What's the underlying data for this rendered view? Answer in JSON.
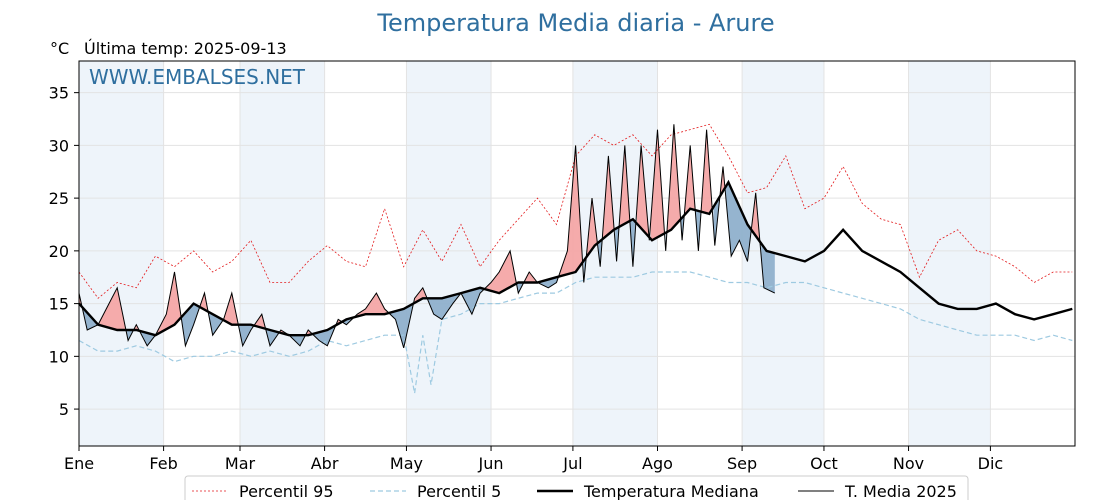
{
  "chart_data": {
    "type": "line",
    "title": "Temperatura Media diaria - Arure",
    "unit_label": "°C",
    "last_update": "Última temp: 2025-09-13",
    "watermark": "WWW.EMBALSES.NET",
    "ylim": [
      1.5,
      38
    ],
    "yticks": [
      5,
      10,
      15,
      20,
      25,
      30,
      35
    ],
    "month_labels": [
      "Ene",
      "Feb",
      "Mar",
      "Abr",
      "May",
      "Jun",
      "Jul",
      "Ago",
      "Sep",
      "Oct",
      "Nov",
      "Dic"
    ],
    "month_start_days": [
      1,
      32,
      60,
      91,
      121,
      152,
      182,
      213,
      244,
      274,
      305,
      335
    ],
    "grid": true,
    "legend_position": "bottom-center",
    "colors": {
      "p95": "#e31a1c",
      "p5": "#9ecae1",
      "median": "#000000",
      "current": "#000000",
      "above": "#f4a6a6",
      "below": "#8fb0cc",
      "band": "#eef4fa"
    },
    "series": [
      {
        "name": "Percentil 95",
        "key": "p95",
        "x": [
          1,
          8,
          15,
          22,
          29,
          36,
          43,
          50,
          57,
          64,
          71,
          78,
          85,
          92,
          99,
          106,
          113,
          120,
          127,
          134,
          141,
          148,
          155,
          162,
          169,
          176,
          183,
          190,
          197,
          204,
          211,
          218,
          225,
          232,
          239,
          246,
          253,
          260,
          267,
          274,
          281,
          288,
          295,
          302,
          309,
          316,
          323,
          330,
          337,
          344,
          351,
          358,
          365
        ],
        "values": [
          18,
          15.5,
          17,
          16.5,
          19.5,
          18.5,
          20,
          18,
          19,
          21,
          17,
          17,
          19,
          20.5,
          19,
          18.5,
          24,
          18.5,
          22,
          19,
          22.5,
          18.5,
          21,
          23,
          25,
          22.5,
          29,
          31,
          30,
          31,
          29,
          31,
          31.5,
          32,
          29,
          25.5,
          26,
          29,
          24,
          25,
          28,
          24.5,
          23,
          22.5,
          17.5,
          21,
          22,
          20,
          19.5,
          18.5,
          17,
          18,
          18
        ]
      },
      {
        "name": "Percentil 5",
        "key": "p5",
        "x": [
          1,
          8,
          15,
          22,
          29,
          36,
          43,
          50,
          57,
          64,
          71,
          78,
          85,
          92,
          99,
          106,
          113,
          120,
          124,
          127,
          130,
          134,
          141,
          148,
          155,
          162,
          169,
          176,
          183,
          190,
          197,
          204,
          211,
          218,
          225,
          232,
          239,
          246,
          253,
          260,
          267,
          274,
          281,
          288,
          295,
          302,
          309,
          316,
          323,
          330,
          337,
          344,
          351,
          358,
          365
        ],
        "values": [
          11.5,
          10.5,
          10.5,
          11,
          10.5,
          9.5,
          10,
          10,
          10.5,
          10,
          10.5,
          10,
          10.5,
          11.5,
          11,
          11.5,
          12,
          12,
          6.5,
          12,
          7.3,
          13.5,
          14,
          15,
          15,
          15.5,
          16,
          16,
          17,
          17.5,
          17.5,
          17.5,
          18,
          18,
          18,
          17.5,
          17,
          17,
          16.5,
          17,
          17,
          16.5,
          16,
          15.5,
          15,
          14.5,
          13.5,
          13,
          12.5,
          12,
          12,
          12,
          11.5,
          12,
          11.5
        ]
      },
      {
        "name": "Temperatura Mediana",
        "key": "median",
        "x": [
          1,
          8,
          15,
          22,
          29,
          36,
          43,
          50,
          57,
          64,
          71,
          78,
          85,
          92,
          99,
          106,
          113,
          120,
          127,
          134,
          141,
          148,
          155,
          162,
          169,
          176,
          183,
          190,
          197,
          204,
          211,
          218,
          225,
          232,
          239,
          246,
          253,
          260,
          267,
          274,
          281,
          288,
          295,
          302,
          309,
          316,
          323,
          330,
          337,
          344,
          351,
          358,
          365
        ],
        "values": [
          15,
          13,
          12.5,
          12.5,
          12,
          13,
          15,
          14,
          13,
          13,
          12.5,
          12,
          12,
          12.5,
          13.5,
          14,
          14,
          14.5,
          15.5,
          15.5,
          16,
          16.5,
          16,
          17,
          17,
          17.5,
          18,
          20.5,
          22,
          23,
          21,
          22,
          24,
          23.5,
          26.5,
          22.5,
          20,
          19.5,
          19,
          20,
          22,
          20,
          19,
          18,
          16.5,
          15,
          14.5,
          14.5,
          15,
          14,
          13.5,
          14,
          14.5
        ]
      },
      {
        "name": "T. Media 2025",
        "key": "current",
        "x": [
          1,
          4,
          8,
          12,
          15,
          19,
          22,
          26,
          29,
          33,
          36,
          40,
          43,
          47,
          50,
          54,
          57,
          61,
          64,
          68,
          71,
          75,
          78,
          82,
          85,
          89,
          92,
          96,
          99,
          103,
          106,
          110,
          113,
          117,
          120,
          124,
          127,
          131,
          134,
          138,
          141,
          145,
          148,
          152,
          155,
          159,
          162,
          166,
          169,
          173,
          176,
          180,
          183,
          186,
          189,
          192,
          195,
          198,
          201,
          204,
          207,
          210,
          213,
          216,
          219,
          222,
          225,
          228,
          231,
          234,
          237,
          240,
          243,
          246,
          249,
          252,
          256
        ],
        "values": [
          16,
          12.5,
          13,
          15,
          16.5,
          11.5,
          13,
          11,
          12,
          14,
          18,
          11,
          13,
          16,
          12,
          13.5,
          16,
          11,
          12.5,
          14,
          11,
          12.5,
          12,
          11,
          12.5,
          11.5,
          11,
          13.5,
          13,
          14,
          14.5,
          16,
          14.5,
          13.5,
          10.8,
          15.5,
          16.5,
          14,
          13.5,
          15,
          16,
          14,
          16,
          17,
          18,
          20,
          16,
          18,
          17,
          16.5,
          17,
          20,
          30,
          17,
          25,
          18.5,
          29,
          19,
          30,
          18.5,
          30,
          21,
          31.5,
          20,
          32,
          21,
          30,
          20,
          31.5,
          20.5,
          28,
          19.5,
          21,
          19,
          25.5,
          16.5,
          16
        ]
      }
    ]
  }
}
